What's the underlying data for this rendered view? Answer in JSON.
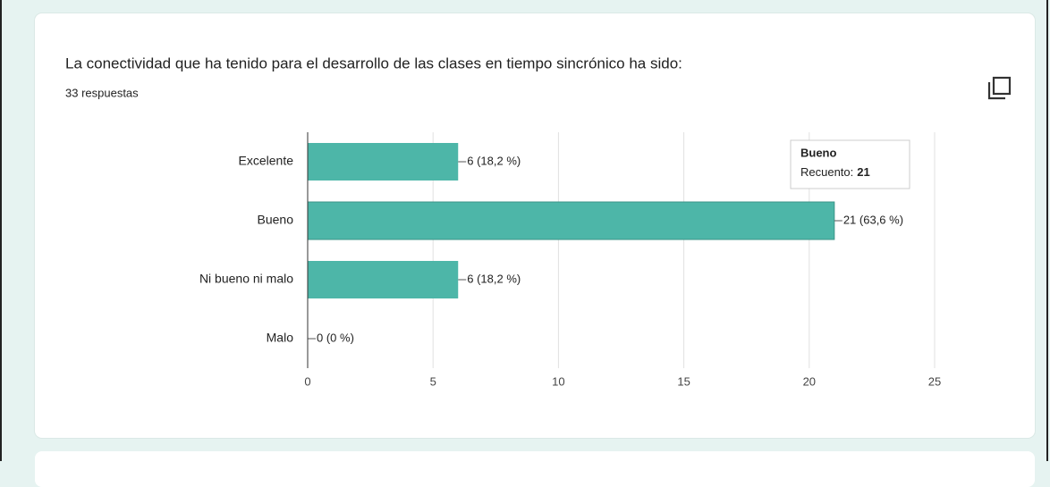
{
  "chart_data": {
    "type": "hbar",
    "title": "La conectividad que ha tenido para el desarrollo de las clases en tiempo sincrónico ha sido:",
    "subtitle": "33 respuestas",
    "categories": [
      "Excelente",
      "Bueno",
      "Ni bueno ni malo",
      "Malo"
    ],
    "values": [
      6,
      21,
      6,
      0
    ],
    "value_labels": [
      "6 (18,2 %)",
      "21 (63,6 %)",
      "6 (18,2 %)",
      "0 (0 %)"
    ],
    "color": "#4db6a8",
    "xlim": [
      0,
      25
    ],
    "xticks": [
      0,
      5,
      10,
      15,
      20,
      25
    ],
    "grid": true,
    "tooltip": {
      "title": "Bueno",
      "label": "Recuento:",
      "value": 21
    }
  }
}
